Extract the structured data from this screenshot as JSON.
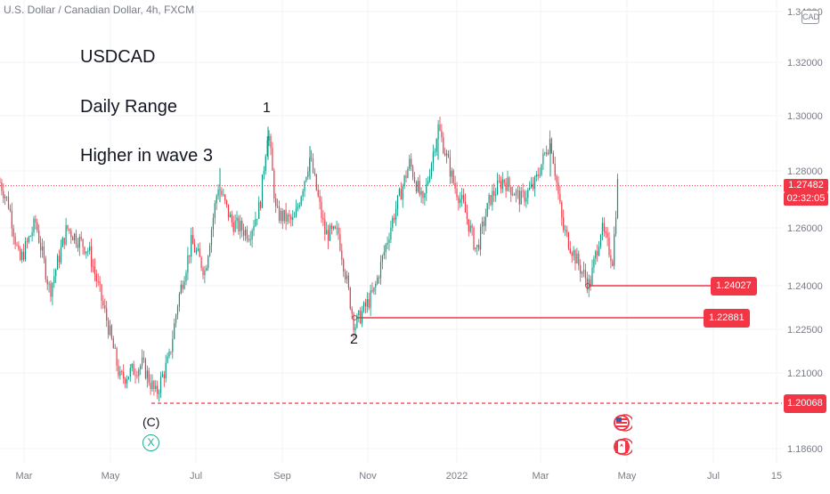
{
  "header": {
    "symbol_title": "U.S. Dollar / Canadian Dollar, 4h, FXCM",
    "currency_badge": "CAD"
  },
  "notes": [
    "USDCAD",
    "Daily Range",
    "Higher in wave 3"
  ],
  "price_scale": {
    "last_price": "1.27482",
    "countdown": "02:32:05",
    "last_color": "#f23645",
    "countdown_color": "#f23645"
  },
  "levels": [
    {
      "label": "1.24027",
      "style": "solid",
      "color": "#f23645"
    },
    {
      "label": "1.22881",
      "style": "solid",
      "color": "#f23645"
    },
    {
      "label": "1.20068",
      "style": "dashed",
      "color": "#f23645"
    }
  ],
  "wave_labels": {
    "w1": "1",
    "w2": "2",
    "wc": "(C)"
  },
  "event_markers": {
    "x_badge": "X",
    "flags": [
      "us-flag-icon",
      "canada-flag-icon"
    ]
  },
  "colors": {
    "up": "#089981",
    "down": "#f23645",
    "grid": "#f0f3fa",
    "axis_text": "#787b86"
  },
  "chart_data": {
    "type": "candlestick",
    "x_ticks": [
      "Mar",
      "May",
      "Jul",
      "Sep",
      "Nov",
      "2022",
      "Mar",
      "May",
      "Jul",
      "15"
    ],
    "y_ticks": [
      "1.34000",
      "1.32000",
      "1.30000",
      "1.28000",
      "1.26000",
      "1.24000",
      "1.22500",
      "1.21000",
      "1.18600"
    ],
    "ylim": [
      1.18,
      1.34
    ],
    "path": [
      [
        0,
        1.276
      ],
      [
        10,
        1.268
      ],
      [
        22,
        1.248
      ],
      [
        40,
        1.262
      ],
      [
        56,
        1.238
      ],
      [
        75,
        1.26
      ],
      [
        100,
        1.252
      ],
      [
        120,
        1.228
      ],
      [
        135,
        1.208
      ],
      [
        160,
        1.213
      ],
      [
        175,
        1.203
      ],
      [
        190,
        1.215
      ],
      [
        200,
        1.235
      ],
      [
        215,
        1.255
      ],
      [
        230,
        1.245
      ],
      [
        245,
        1.275
      ],
      [
        260,
        1.262
      ],
      [
        280,
        1.258
      ],
      [
        292,
        1.268
      ],
      [
        301,
        1.296
      ],
      [
        310,
        1.265
      ],
      [
        330,
        1.262
      ],
      [
        348,
        1.285
      ],
      [
        365,
        1.258
      ],
      [
        380,
        1.258
      ],
      [
        398,
        1.226
      ],
      [
        420,
        1.238
      ],
      [
        440,
        1.262
      ],
      [
        460,
        1.283
      ],
      [
        475,
        1.268
      ],
      [
        492,
        1.296
      ],
      [
        510,
        1.275
      ],
      [
        520,
        1.268
      ],
      [
        535,
        1.252
      ],
      [
        550,
        1.27
      ],
      [
        565,
        1.277
      ],
      [
        585,
        1.27
      ],
      [
        600,
        1.275
      ],
      [
        618,
        1.292
      ],
      [
        632,
        1.26
      ],
      [
        650,
        1.247
      ],
      [
        662,
        1.24
      ],
      [
        675,
        1.26
      ],
      [
        688,
        1.249
      ],
      [
        694,
        1.278
      ]
    ]
  }
}
